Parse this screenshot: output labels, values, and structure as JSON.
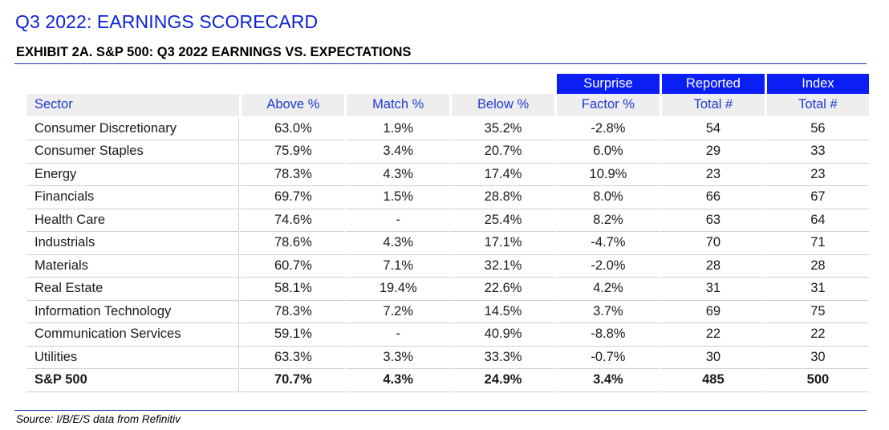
{
  "page_title": "Q3 2022: EARNINGS SCORECARD",
  "exhibit_title": "EXHIBIT 2A.  S&P 500: Q3 2022 EARNINGS VS. EXPECTATIONS",
  "accent_color": "#0a1ef5",
  "title_color": "#0a22d8",
  "table": {
    "header_row1": {
      "surprise": "Surprise",
      "reported": "Reported",
      "index": "Index"
    },
    "header_row2": {
      "sector": "Sector",
      "above": "Above %",
      "match": "Match %",
      "below": "Below %",
      "surprise_factor": "Factor %",
      "reported_total": "Total #",
      "index_total": "Total #"
    },
    "rows": [
      {
        "sector": "Consumer Discretionary",
        "above": "63.0%",
        "match": "1.9%",
        "below": "35.2%",
        "surprise": "-2.8%",
        "reported": "54",
        "index": "56"
      },
      {
        "sector": "Consumer Staples",
        "above": "75.9%",
        "match": "3.4%",
        "below": "20.7%",
        "surprise": "6.0%",
        "reported": "29",
        "index": "33"
      },
      {
        "sector": "Energy",
        "above": "78.3%",
        "match": "4.3%",
        "below": "17.4%",
        "surprise": "10.9%",
        "reported": "23",
        "index": "23"
      },
      {
        "sector": "Financials",
        "above": "69.7%",
        "match": "1.5%",
        "below": "28.8%",
        "surprise": "8.0%",
        "reported": "66",
        "index": "67"
      },
      {
        "sector": "Health Care",
        "above": "74.6%",
        "match": "-",
        "below": "25.4%",
        "surprise": "8.2%",
        "reported": "63",
        "index": "64"
      },
      {
        "sector": "Industrials",
        "above": "78.6%",
        "match": "4.3%",
        "below": "17.1%",
        "surprise": "-4.7%",
        "reported": "70",
        "index": "71"
      },
      {
        "sector": "Materials",
        "above": "60.7%",
        "match": "7.1%",
        "below": "32.1%",
        "surprise": "-2.0%",
        "reported": "28",
        "index": "28"
      },
      {
        "sector": "Real Estate",
        "above": "58.1%",
        "match": "19.4%",
        "below": "22.6%",
        "surprise": "4.2%",
        "reported": "31",
        "index": "31"
      },
      {
        "sector": "Information Technology",
        "above": "78.3%",
        "match": "7.2%",
        "below": "14.5%",
        "surprise": "3.7%",
        "reported": "69",
        "index": "75"
      },
      {
        "sector": "Communication Services",
        "above": "59.1%",
        "match": "-",
        "below": "40.9%",
        "surprise": "-8.8%",
        "reported": "22",
        "index": "22"
      },
      {
        "sector": "Utilities",
        "above": "63.3%",
        "match": "3.3%",
        "below": "33.3%",
        "surprise": "-0.7%",
        "reported": "30",
        "index": "30"
      },
      {
        "sector": "S&P 500",
        "above": "70.7%",
        "match": "4.3%",
        "below": "24.9%",
        "surprise": "3.4%",
        "reported": "485",
        "index": "500"
      }
    ]
  },
  "source_note": "Source: I/B/E/S data from Refinitiv"
}
